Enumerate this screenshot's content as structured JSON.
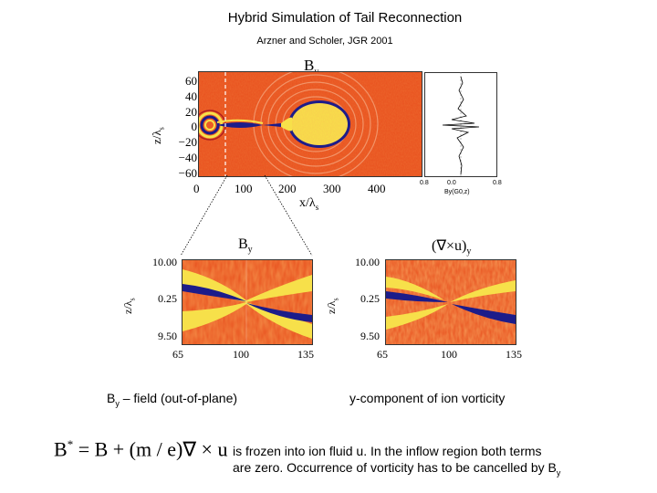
{
  "title": "Hybrid Simulation of Tail Reconnection",
  "subtitle": "Arzner and Scholer, JGR 2001",
  "top_panel": {
    "label": "B",
    "label_sub": "y",
    "ylabel": "z/λ",
    "ylabel_sub": "s",
    "y_ticks": [
      "60",
      "40",
      "20",
      "0",
      "−20",
      "−40",
      "−60"
    ],
    "x_ticks": [
      "0",
      "100",
      "200",
      "300",
      "400"
    ],
    "xlabel": "x/λ",
    "xlabel_sub": "s",
    "profile_ticks": [
      "0.8",
      "0.0",
      "0.8"
    ],
    "profile_label": "By(G0,z)"
  },
  "left_panel": {
    "label": "B",
    "label_sub": "y",
    "ylabel": "z/λ",
    "ylabel_sub": "s",
    "y_ticks": [
      "10.00",
      "0.25",
      "9.50"
    ],
    "x_ticks": [
      "65",
      "100",
      "135"
    ]
  },
  "right_panel": {
    "label": "(∇×u)",
    "label_sub": "y",
    "ylabel": "z/λ",
    "ylabel_sub": "s",
    "y_ticks": [
      "10.00",
      "0.25",
      "9.50"
    ],
    "x_ticks": [
      "65",
      "100",
      "135"
    ]
  },
  "captions": {
    "left_main": "B",
    "left_sub": "y",
    "left_rest": " – field (out-of-plane)",
    "right": "y-component of ion vorticity"
  },
  "equation": {
    "lhs": "B",
    "lhs_sup": "*",
    "rhs": " = B + (m / e)∇ × u"
  },
  "paragraph": {
    "line1": "is frozen into ion fluid u. In the inflow  region both terms",
    "line2": "are zero. Occurrence of vorticity has to be cancelled  by B",
    "line2_sub": "y"
  },
  "colors": {
    "field_bg": "#e8501e",
    "field_hot": "#f7e04a",
    "field_cold": "#1c1c8a"
  }
}
